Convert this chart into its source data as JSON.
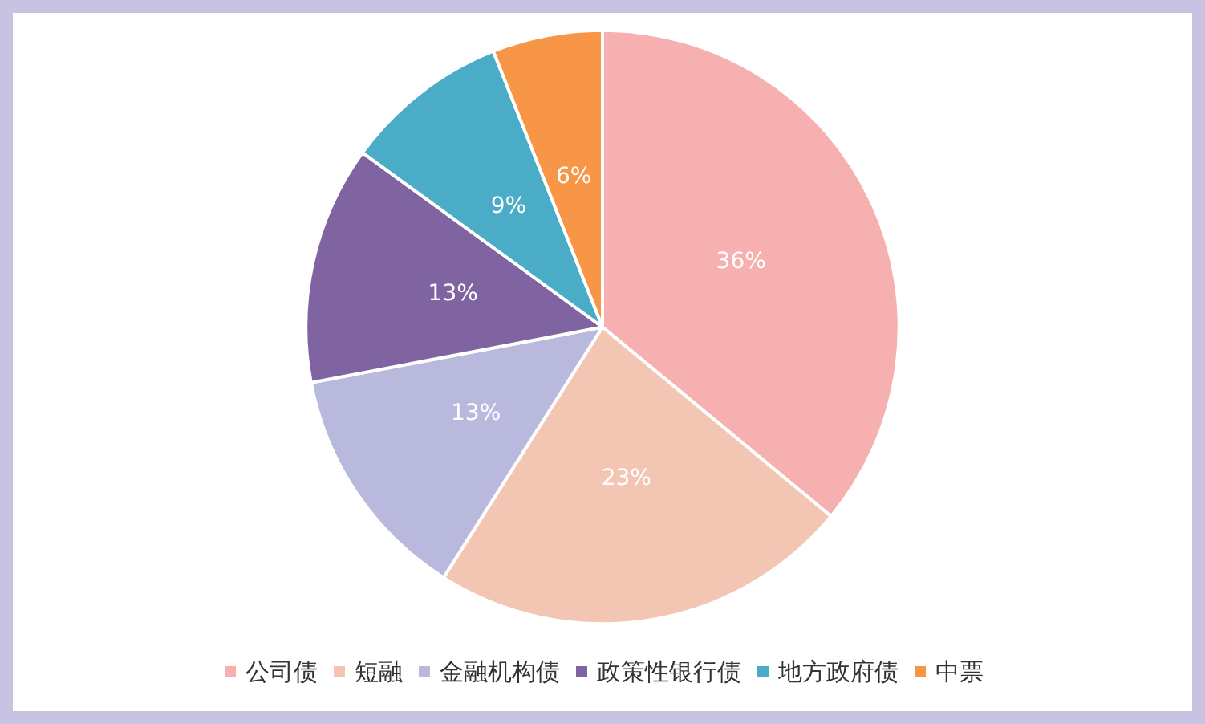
{
  "chart_data": {
    "type": "pie",
    "categories": [
      "公司债",
      "短融",
      "金融机构债",
      "政策性银行债",
      "地方政府债",
      "中票"
    ],
    "values": [
      36,
      23,
      13,
      13,
      9,
      6
    ],
    "colors": [
      "#f7b0b0",
      "#f3c6b4",
      "#b9b9de",
      "#8064a2",
      "#4aacc6",
      "#f79646"
    ],
    "value_labels": [
      "36%",
      "23%",
      "13%",
      "13%",
      "9%",
      "6%"
    ],
    "legend": "bottom"
  }
}
